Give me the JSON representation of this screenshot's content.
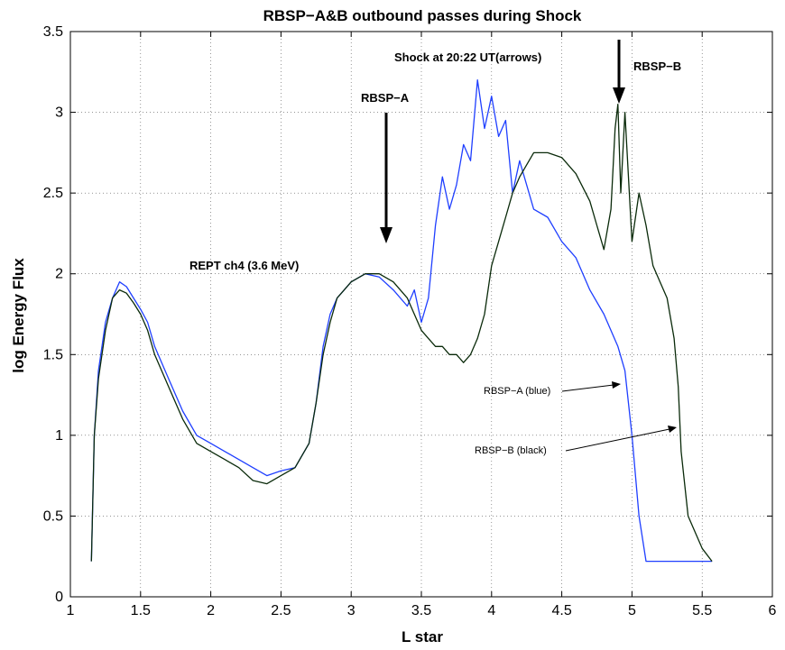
{
  "chart_data": {
    "type": "line",
    "title": "RBSP−A&B outbound passes during Shock",
    "xlabel": "L star",
    "ylabel": "log Energy Flux",
    "xlim": [
      1,
      6
    ],
    "ylim": [
      0,
      3.5
    ],
    "x_ticks": [
      "1",
      "1.5",
      "2",
      "2.5",
      "3",
      "3.5",
      "4",
      "4.5",
      "5",
      "5.5",
      "6"
    ],
    "y_ticks": [
      "0",
      "0.5",
      "1",
      "1.5",
      "2",
      "2.5",
      "3",
      "3.5"
    ],
    "grid": true,
    "series": [
      {
        "name": "RBSP−A (blue)",
        "color": "#1f3fff",
        "x": [
          1.15,
          1.17,
          1.2,
          1.25,
          1.3,
          1.35,
          1.4,
          1.45,
          1.5,
          1.55,
          1.6,
          1.7,
          1.8,
          1.9,
          2.0,
          2.1,
          2.2,
          2.3,
          2.4,
          2.5,
          2.6,
          2.7,
          2.75,
          2.8,
          2.85,
          2.9,
          3.0,
          3.1,
          3.2,
          3.3,
          3.4,
          3.45,
          3.5,
          3.55,
          3.6,
          3.65,
          3.7,
          3.75,
          3.8,
          3.85,
          3.9,
          3.95,
          4.0,
          4.05,
          4.1,
          4.15,
          4.2,
          4.3,
          4.4,
          4.5,
          4.6,
          4.7,
          4.8,
          4.9,
          4.95,
          5.0,
          5.05,
          5.1,
          5.2,
          5.3,
          5.4,
          5.5,
          5.57
        ],
        "y": [
          0.22,
          1.0,
          1.4,
          1.7,
          1.85,
          1.95,
          1.92,
          1.85,
          1.78,
          1.7,
          1.55,
          1.35,
          1.15,
          1.0,
          0.95,
          0.9,
          0.85,
          0.8,
          0.75,
          0.78,
          0.8,
          0.95,
          1.2,
          1.55,
          1.75,
          1.85,
          1.95,
          2.0,
          1.98,
          1.9,
          1.8,
          1.9,
          1.7,
          1.85,
          2.3,
          2.6,
          2.4,
          2.55,
          2.8,
          2.7,
          3.2,
          2.9,
          3.1,
          2.85,
          2.95,
          2.5,
          2.7,
          2.4,
          2.35,
          2.2,
          2.1,
          1.9,
          1.75,
          1.55,
          1.4,
          1.0,
          0.5,
          0.22,
          0.22,
          0.22,
          0.22,
          0.22,
          0.22
        ]
      },
      {
        "name": "RBSP−B (black)",
        "color": "#0a2a0a",
        "x": [
          1.15,
          1.17,
          1.2,
          1.25,
          1.3,
          1.35,
          1.4,
          1.45,
          1.5,
          1.55,
          1.6,
          1.7,
          1.8,
          1.9,
          2.0,
          2.1,
          2.2,
          2.3,
          2.4,
          2.5,
          2.6,
          2.7,
          2.75,
          2.8,
          2.85,
          2.9,
          3.0,
          3.1,
          3.2,
          3.3,
          3.4,
          3.45,
          3.5,
          3.55,
          3.6,
          3.65,
          3.7,
          3.75,
          3.8,
          3.85,
          3.9,
          3.95,
          4.0,
          4.05,
          4.1,
          4.15,
          4.2,
          4.3,
          4.4,
          4.5,
          4.6,
          4.7,
          4.75,
          4.8,
          4.85,
          4.88,
          4.9,
          4.92,
          4.95,
          5.0,
          5.05,
          5.1,
          5.15,
          5.2,
          5.25,
          5.3,
          5.33,
          5.35,
          5.4,
          5.5,
          5.57
        ],
        "y": [
          0.22,
          1.0,
          1.35,
          1.65,
          1.85,
          1.9,
          1.88,
          1.82,
          1.75,
          1.65,
          1.5,
          1.3,
          1.1,
          0.95,
          0.9,
          0.85,
          0.8,
          0.72,
          0.7,
          0.75,
          0.8,
          0.95,
          1.2,
          1.5,
          1.7,
          1.85,
          1.95,
          2.0,
          2.0,
          1.95,
          1.85,
          1.75,
          1.65,
          1.6,
          1.55,
          1.55,
          1.5,
          1.5,
          1.45,
          1.5,
          1.6,
          1.75,
          2.05,
          2.2,
          2.35,
          2.5,
          2.6,
          2.75,
          2.75,
          2.72,
          2.62,
          2.45,
          2.3,
          2.15,
          2.4,
          2.9,
          3.05,
          2.5,
          3.0,
          2.2,
          2.5,
          2.3,
          2.05,
          1.95,
          1.85,
          1.6,
          1.3,
          0.9,
          0.5,
          0.3,
          0.22
        ]
      }
    ],
    "annotations": {
      "shock_label": "Shock at 20:22 UT(arrows)",
      "rbsp_a_arrow_label": "RBSP−A",
      "rbsp_b_arrow_label": "RBSP−B",
      "rept_label": "REPT ch4 (3.6 MeV)",
      "legend_a": "RBSP−A (blue)",
      "legend_b": "RBSP−B (black)"
    }
  }
}
